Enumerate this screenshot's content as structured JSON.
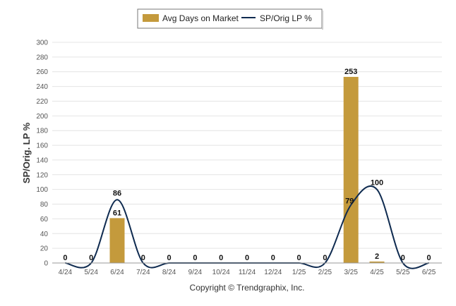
{
  "chart_data": {
    "type": "bar",
    "categories": [
      "4/24",
      "5/24",
      "6/24",
      "7/24",
      "8/24",
      "9/24",
      "10/24",
      "11/24",
      "12/24",
      "1/25",
      "2/25",
      "3/25",
      "4/25",
      "5/25",
      "6/25"
    ],
    "series": [
      {
        "name": "Avg Days on Market",
        "type": "bar",
        "color": "#C49A3C",
        "values": [
          0,
          0,
          61,
          0,
          0,
          0,
          0,
          0,
          0,
          0,
          0,
          253,
          2,
          0,
          0
        ],
        "data_labels": [
          "",
          "",
          "61",
          "",
          "",
          "",
          "",
          "",
          "",
          "",
          "",
          "253",
          "2",
          "",
          ""
        ]
      },
      {
        "name": "SP/Orig LP %",
        "type": "line",
        "color": "#0F2B50",
        "values": [
          0,
          0,
          86,
          0,
          0,
          0,
          0,
          0,
          0,
          0,
          0,
          79,
          100,
          0,
          0
        ],
        "data_labels": [
          "0",
          "0",
          "86",
          "0",
          "0",
          "0",
          "0",
          "0",
          "0",
          "0",
          "0",
          "79",
          "100",
          "0",
          "0"
        ]
      }
    ],
    "ylabel": "SP/Orig. LP %",
    "ylim": [
      0,
      300
    ],
    "yticks": [
      0,
      20,
      40,
      60,
      80,
      100,
      120,
      140,
      160,
      180,
      200,
      220,
      240,
      260,
      280,
      300
    ],
    "grid": true,
    "legend_position": "top-center"
  },
  "footer": {
    "copyright": "Copyright © Trendgraphix, Inc."
  },
  "colors": {
    "bar": "#C49A3C",
    "line": "#0F2B50",
    "grid": "#e4e4e4",
    "axis": "#999999"
  }
}
